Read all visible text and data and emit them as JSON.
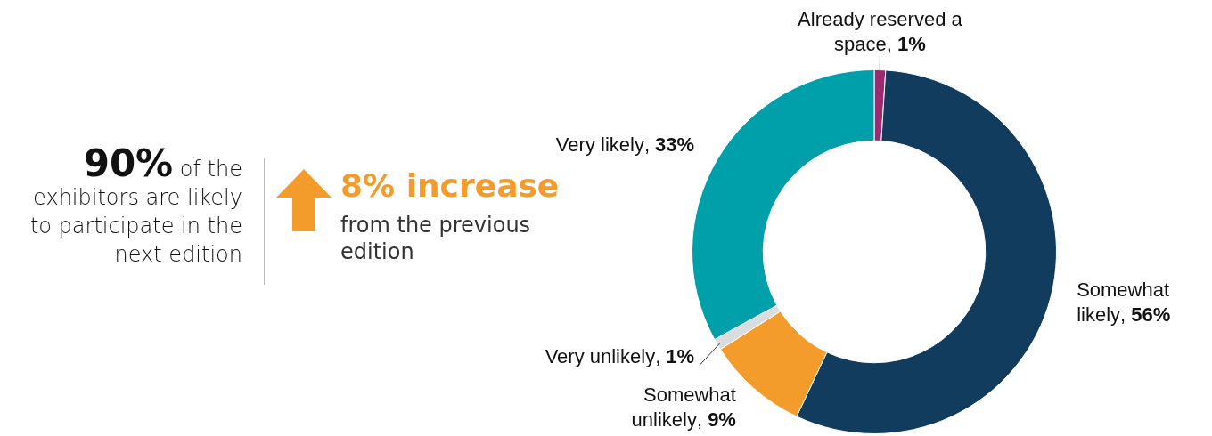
{
  "chart_data": {
    "type": "donut",
    "categories": [
      "Already reserved a space",
      "Somewhat likely",
      "Somewhat unlikely",
      "Very unlikely",
      "Very likely"
    ],
    "values": [
      1,
      56,
      9,
      1,
      33
    ],
    "colors": [
      "#9b2a6e",
      "#123c5e",
      "#f39c2c",
      "#d9dde0",
      "#00a0aa"
    ],
    "value_labels": [
      ", 1%",
      ", 56%",
      ", 9%",
      ", 1%",
      ", 33%"
    ],
    "annotations": [
      "90%",
      "of the exhibitors are likely to participate in the next edition",
      "8% increase",
      "from the previous edition"
    ]
  }
}
